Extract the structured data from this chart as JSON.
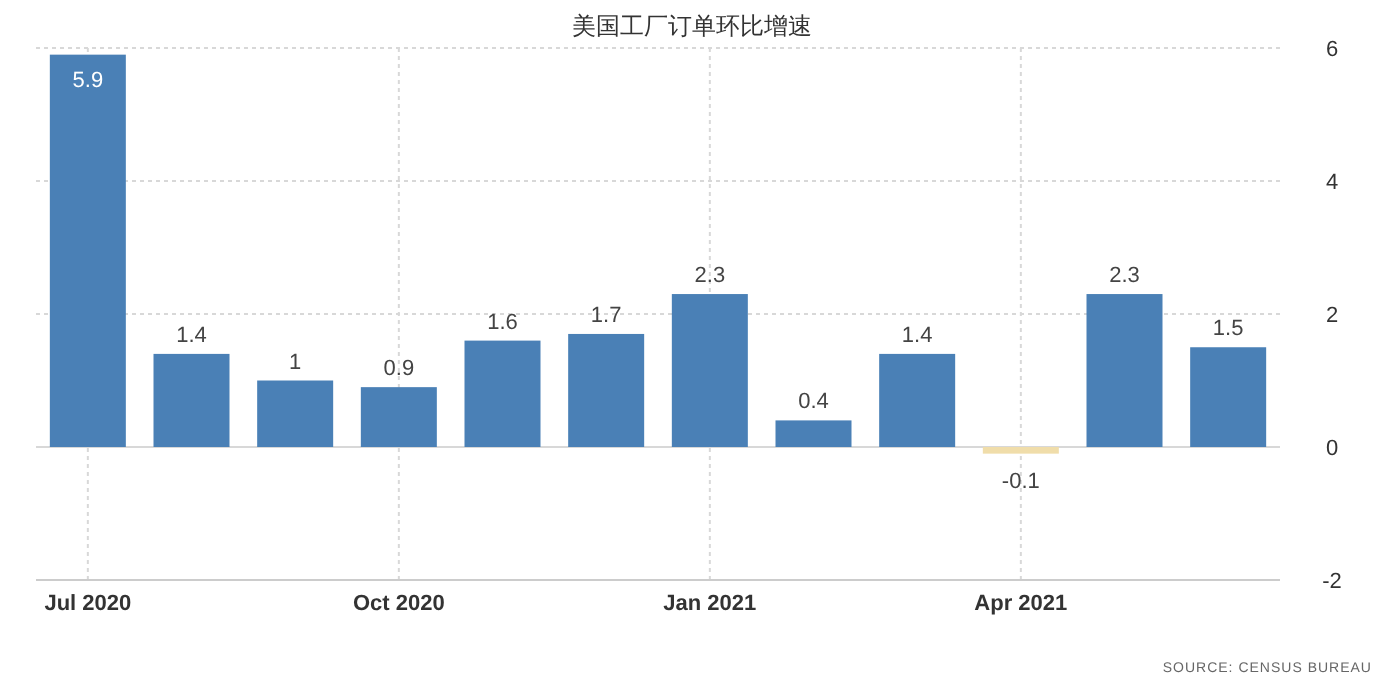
{
  "chart_data": {
    "type": "bar",
    "title": "美国工厂订单环比增速",
    "categories": [
      "Jul 2020",
      null,
      null,
      "Oct 2020",
      null,
      null,
      "Jan 2021",
      null,
      null,
      "Apr 2021",
      null,
      null
    ],
    "values": [
      5.9,
      1.4,
      1,
      0.9,
      1.6,
      1.7,
      2.3,
      0.4,
      1.4,
      -0.1,
      2.3,
      1.5
    ],
    "colors": [
      "#4a80b6",
      "#4a80b6",
      "#4a80b6",
      "#4a80b6",
      "#4a80b6",
      "#4a80b6",
      "#4a80b6",
      "#4a80b6",
      "#4a80b6",
      "#f0ddaa",
      "#4a80b6",
      "#4a80b6"
    ],
    "ylim": [
      -2,
      6
    ],
    "yticks": [
      -2,
      0,
      2,
      4,
      6
    ],
    "grid": true,
    "data_labels": true,
    "annotations": [
      "SOURCE: CENSUS BUREAU"
    ]
  }
}
